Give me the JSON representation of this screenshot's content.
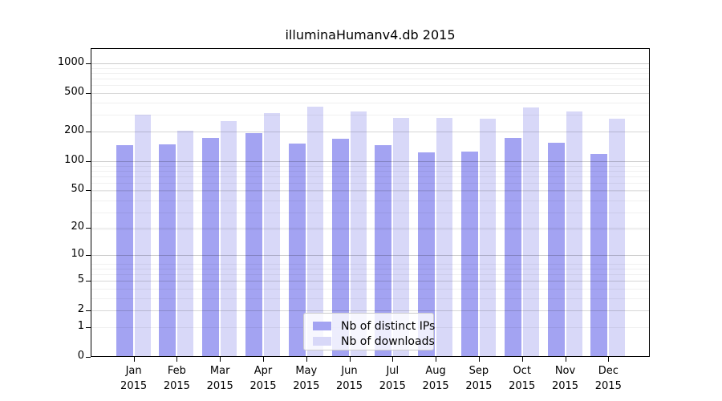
{
  "title": "illuminaHumanv4.db 2015",
  "legend": {
    "items": [
      {
        "label": "Nb of distinct IPs",
        "color": "#a3a3f2"
      },
      {
        "label": "Nb of downloads",
        "color": "#d8d8f8"
      }
    ]
  },
  "y_axis": {
    "ticks": [
      1000,
      500,
      200,
      100,
      50,
      20,
      10,
      5,
      2,
      1,
      0
    ]
  },
  "x_axis": {
    "months": [
      "Jan",
      "Feb",
      "Mar",
      "Apr",
      "May",
      "Jun",
      "Jul",
      "Aug",
      "Sep",
      "Oct",
      "Nov",
      "Dec"
    ],
    "year": "2015"
  },
  "chart_data": {
    "type": "bar",
    "title": "illuminaHumanv4.db 2015",
    "categories": [
      "Jan 2015",
      "Feb 2015",
      "Mar 2015",
      "Apr 2015",
      "May 2015",
      "Jun 2015",
      "Jul 2015",
      "Aug 2015",
      "Sep 2015",
      "Oct 2015",
      "Nov 2015",
      "Dec 2015"
    ],
    "series": [
      {
        "name": "Nb of distinct IPs",
        "color": "#a3a3f2",
        "values": [
          146,
          147,
          173,
          194,
          150,
          168,
          144,
          122,
          125,
          171,
          154,
          118
        ]
      },
      {
        "name": "Nb of downloads",
        "color": "#d8d8f8",
        "values": [
          300,
          205,
          256,
          311,
          362,
          322,
          275,
          278,
          270,
          356,
          322,
          271
        ]
      }
    ],
    "y_scale": "log10(1+x)",
    "y_ticks": [
      0,
      1,
      2,
      5,
      10,
      20,
      50,
      100,
      200,
      500,
      1000
    ],
    "ylim": [
      0,
      1300
    ],
    "grid": "on",
    "grid_decade_ticks": [
      10,
      100,
      1000
    ],
    "grid_mid_ticks": [
      2,
      5,
      20,
      50,
      200,
      500
    ],
    "grid_minor_multipliers": [
      2,
      3,
      4,
      5,
      6,
      7,
      8,
      9
    ],
    "legend_position": "lower center",
    "xlabel": "",
    "ylabel": ""
  }
}
